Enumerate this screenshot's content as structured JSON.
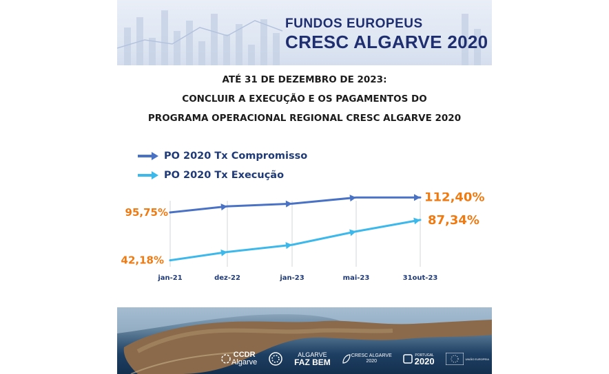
{
  "header": {
    "line1": "FUNDOS EUROPEUS",
    "line2": "CRESC ALGARVE 2020"
  },
  "headline": {
    "line1": "ATÉ 31 DE DEZEMBRO DE 2023:",
    "line2": "CONCLUIR A EXECUÇÃO E OS PAGAMENTOS DO",
    "line3": "PROGRAMA OPERACIONAL REGIONAL CRESC ALGARVE 2020"
  },
  "colors": {
    "compromisso": "#4a72c4",
    "execucao": "#3db8ea",
    "value_label": "#f07a12",
    "tick_label": "#1f3a78",
    "header_text": "#1f2e6e"
  },
  "chart_data": {
    "type": "line",
    "categories": [
      "jan-21",
      "dez-22",
      "jan-23",
      "mai-23",
      "31out-23"
    ],
    "series": [
      {
        "name": "PO 2020 Tx Compromisso",
        "values": [
          95.75,
          102.5,
          105.5,
          112.4,
          112.4
        ]
      },
      {
        "name": "PO 2020 Tx Execução",
        "values": [
          42.18,
          51.5,
          59.5,
          74.5,
          87.34
        ]
      }
    ],
    "data_labels": {
      "start_compromisso": "95,75%",
      "start_execucao": "42,18%",
      "end_compromisso": "112,40%",
      "end_execucao": "87,34%"
    },
    "ylim": [
      35,
      118
    ],
    "grid": "vertical lines at categories"
  },
  "footer": {
    "logos": [
      {
        "name": "ccdr-algarve",
        "text_top": "CCDR",
        "text_bottom": "Algarve"
      },
      {
        "name": "algarve-faz-bem",
        "text_top": "ALGARVE",
        "text_bottom": "FAZ BEM"
      },
      {
        "name": "cresc-algarve-2020",
        "text_top": "CRESC ALGARVE",
        "text_bottom": "2020"
      },
      {
        "name": "portugal-2020",
        "text_top": "PORTUGAL",
        "text_bottom": "2020"
      },
      {
        "name": "uniao-europeia",
        "text_top": "UNIÃO EUROPEIA",
        "text_bottom": ""
      }
    ]
  }
}
